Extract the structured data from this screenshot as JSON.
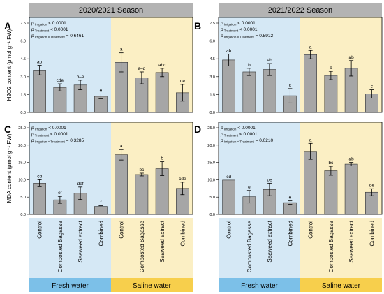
{
  "seasons": [
    "2020/2021 Season",
    "2021/2022 Season"
  ],
  "panel_letters": [
    "A",
    "B",
    "C",
    "D"
  ],
  "categories": [
    "Control",
    "Composted Bagasse",
    "Seaweed extract",
    "Combined"
  ],
  "water_groups": [
    "Fresh water",
    "Saline water"
  ],
  "colors": {
    "fresh_bg": "#d5e8f5",
    "saline_bg": "#fbefc4",
    "fresh_band": "#7cc0e8",
    "saline_band": "#f7cf4c",
    "header": "#b3b3b3",
    "bar": "#a6a6a6"
  },
  "chart_data": [
    {
      "type": "bar",
      "panel": "A",
      "season": "2020/2021 Season",
      "ylabel": "H2O2 content (μmol g⁻¹ FW)",
      "ylim": [
        0,
        7.5
      ],
      "yticks": [
        "0.0",
        "1.5",
        "3.0",
        "4.5",
        "6.0",
        "7.5"
      ],
      "p_values": [
        "< 0.0001",
        "< 0.0001",
        "= 0.6461"
      ],
      "fresh": {
        "values": [
          3.55,
          2.1,
          2.3,
          1.35
        ],
        "errors": [
          0.4,
          0.3,
          0.4,
          0.2
        ],
        "letters": [
          "ab",
          "cde",
          "b–e",
          "e"
        ]
      },
      "saline": {
        "values": [
          4.2,
          2.9,
          3.35,
          1.65
        ],
        "errors": [
          0.8,
          0.5,
          0.35,
          0.7
        ],
        "letters": [
          "a",
          "a–d",
          "abc",
          "de"
        ]
      }
    },
    {
      "type": "bar",
      "panel": "B",
      "season": "2021/2022 Season",
      "ylabel": "",
      "ylim": [
        0,
        7.5
      ],
      "yticks": [
        "0.0",
        "1.5",
        "3.0",
        "4.5",
        "6.0",
        "7.5"
      ],
      "p_values": [
        "< 0.0001",
        "< 0.0001",
        "= 0.5912"
      ],
      "fresh": {
        "values": [
          4.4,
          3.4,
          3.6,
          1.4
        ],
        "errors": [
          0.5,
          0.3,
          0.5,
          0.6
        ],
        "letters": [
          "ab",
          "b",
          "ab",
          "c"
        ]
      },
      "saline": {
        "values": [
          4.85,
          3.1,
          3.7,
          1.55
        ],
        "errors": [
          0.35,
          0.35,
          0.65,
          0.35
        ],
        "letters": [
          "a",
          "b",
          "ab",
          "c"
        ]
      }
    },
    {
      "type": "bar",
      "panel": "C",
      "season": "2020/2021 Season",
      "ylabel": "MDA content (μmol g⁻¹ FW)",
      "ylim": [
        0,
        25
      ],
      "yticks": [
        "0.0",
        "5.0",
        "10.0",
        "15.0",
        "20.0",
        "25.0"
      ],
      "p_values": [
        "< 0.0001",
        "< 0.0001",
        "= 0.3285"
      ],
      "fresh": {
        "values": [
          9.0,
          4.2,
          6.1,
          2.3
        ],
        "errors": [
          1.0,
          1.0,
          1.8,
          0.2
        ],
        "letters": [
          "cd",
          "ef",
          "def",
          "f"
        ]
      },
      "saline": {
        "values": [
          17.2,
          11.5,
          13.2,
          7.5
        ],
        "errors": [
          1.5,
          0.4,
          2.0,
          1.8
        ],
        "letters": [
          "a",
          "bc",
          "b",
          "cde"
        ]
      }
    },
    {
      "type": "bar",
      "panel": "D",
      "season": "2021/2022 Season",
      "ylabel": "",
      "ylim": [
        0,
        25
      ],
      "yticks": [
        "0.0",
        "5.0",
        "10.0",
        "15.0",
        "20.0",
        "25.0"
      ],
      "p_values": [
        "< 0.0001",
        "< 0.0001",
        "= 0.0210"
      ],
      "fresh": {
        "values": [
          9.9,
          5.1,
          7.2,
          3.4
        ],
        "errors": [
          0.0,
          1.8,
          1.8,
          0.5
        ],
        "letters": [
          "cd",
          "e",
          "de",
          "e"
        ]
      },
      "saline": {
        "values": [
          18.2,
          12.6,
          14.5,
          6.4
        ],
        "errors": [
          2.3,
          1.3,
          0.5,
          1.0
        ],
        "letters": [
          "a",
          "bc",
          "ab",
          "de"
        ]
      }
    }
  ]
}
